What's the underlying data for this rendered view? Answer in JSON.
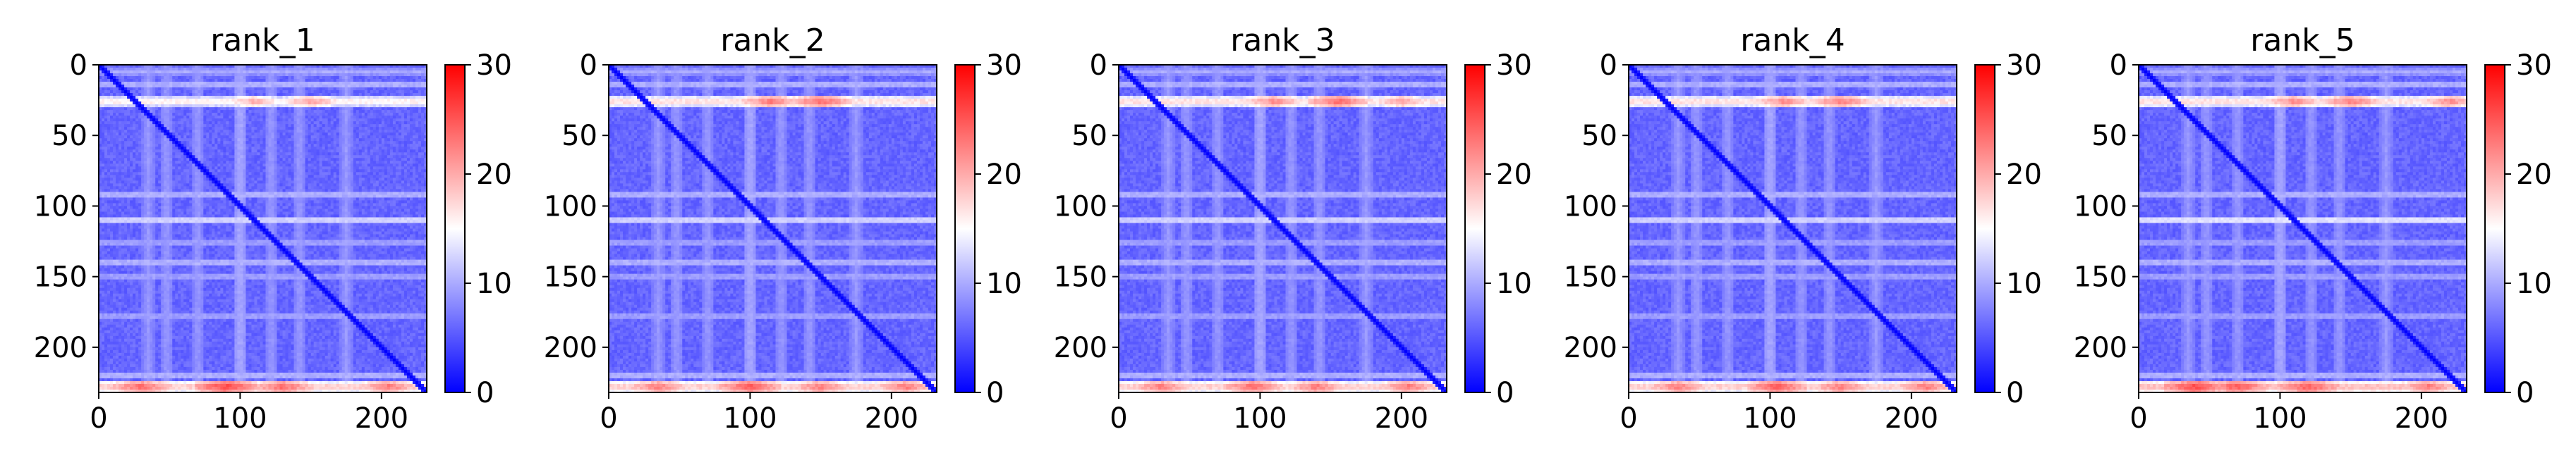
{
  "chart_data": [
    {
      "type": "heatmap",
      "title": "rank_1",
      "xlabel": "",
      "ylabel": "",
      "xlim": [
        0,
        232
      ],
      "ylim": [
        232,
        0
      ],
      "x_ticks": [
        0,
        100,
        200
      ],
      "y_ticks": [
        0,
        50,
        100,
        150,
        200
      ],
      "matrix_size": 232,
      "colorbar": {
        "min": 0,
        "max": 30,
        "ticks": [
          0,
          10,
          20,
          30
        ],
        "colormap": "bwr"
      },
      "features": {
        "background_value": 6,
        "diagonal_value": 0,
        "high_rows": [
          {
            "y": 26,
            "value": 17,
            "peaks": [
              {
                "x": 110,
                "value": 21
              },
              {
                "x": 150,
                "value": 22
              }
            ]
          },
          {
            "y": 228,
            "value": 19,
            "peaks": [
              {
                "x": 30,
                "value": 25
              },
              {
                "x": 90,
                "value": 27
              },
              {
                "x": 130,
                "value": 25
              },
              {
                "x": 205,
                "value": 24
              }
            ]
          }
        ],
        "light_rows": [
          {
            "y": 5,
            "value": 10
          },
          {
            "y": 14,
            "value": 11
          },
          {
            "y": 92,
            "value": 11
          },
          {
            "y": 110,
            "value": 13
          },
          {
            "y": 126,
            "value": 10
          },
          {
            "y": 140,
            "value": 11
          },
          {
            "y": 150,
            "value": 10
          },
          {
            "y": 178,
            "value": 10
          },
          {
            "y": 220,
            "value": 11
          }
        ],
        "light_cols": [
          {
            "x": 35,
            "value": 9
          },
          {
            "x": 48,
            "value": 9
          },
          {
            "x": 70,
            "value": 9
          },
          {
            "x": 100,
            "value": 10
          },
          {
            "x": 122,
            "value": 9
          },
          {
            "x": 142,
            "value": 9
          },
          {
            "x": 175,
            "value": 9
          }
        ]
      }
    },
    {
      "type": "heatmap",
      "title": "rank_2",
      "xlabel": "",
      "ylabel": "",
      "xlim": [
        0,
        232
      ],
      "ylim": [
        232,
        0
      ],
      "x_ticks": [
        0,
        100,
        200
      ],
      "y_ticks": [
        0,
        50,
        100,
        150,
        200
      ],
      "matrix_size": 232,
      "colorbar": {
        "min": 0,
        "max": 30,
        "ticks": [
          0,
          10,
          20,
          30
        ],
        "colormap": "bwr"
      },
      "features": {
        "background_value": 6,
        "diagonal_value": 0,
        "high_rows": [
          {
            "y": 26,
            "value": 18,
            "peaks": [
              {
                "x": 115,
                "value": 24
              },
              {
                "x": 150,
                "value": 25
              }
            ]
          },
          {
            "y": 228,
            "value": 19,
            "peaks": [
              {
                "x": 35,
                "value": 24
              },
              {
                "x": 100,
                "value": 26
              },
              {
                "x": 150,
                "value": 24
              },
              {
                "x": 210,
                "value": 24
              }
            ]
          }
        ],
        "light_rows": [
          {
            "y": 5,
            "value": 10
          },
          {
            "y": 14,
            "value": 11
          },
          {
            "y": 92,
            "value": 11
          },
          {
            "y": 110,
            "value": 13
          },
          {
            "y": 126,
            "value": 10
          },
          {
            "y": 140,
            "value": 11
          },
          {
            "y": 150,
            "value": 10
          },
          {
            "y": 178,
            "value": 10
          },
          {
            "y": 220,
            "value": 11
          }
        ],
        "light_cols": [
          {
            "x": 35,
            "value": 9
          },
          {
            "x": 48,
            "value": 9
          },
          {
            "x": 70,
            "value": 9
          },
          {
            "x": 100,
            "value": 10
          },
          {
            "x": 122,
            "value": 9
          },
          {
            "x": 142,
            "value": 9
          },
          {
            "x": 175,
            "value": 9
          }
        ]
      }
    },
    {
      "type": "heatmap",
      "title": "rank_3",
      "xlabel": "",
      "ylabel": "",
      "xlim": [
        0,
        232
      ],
      "ylim": [
        232,
        0
      ],
      "x_ticks": [
        0,
        100,
        200
      ],
      "y_ticks": [
        0,
        50,
        100,
        150,
        200
      ],
      "matrix_size": 232,
      "colorbar": {
        "min": 0,
        "max": 30,
        "ticks": [
          0,
          10,
          20,
          30
        ],
        "colormap": "bwr"
      },
      "features": {
        "background_value": 6,
        "diagonal_value": 0,
        "high_rows": [
          {
            "y": 26,
            "value": 18,
            "peaks": [
              {
                "x": 110,
                "value": 23
              },
              {
                "x": 155,
                "value": 25
              },
              {
                "x": 200,
                "value": 22
              }
            ]
          },
          {
            "y": 228,
            "value": 19,
            "peaks": [
              {
                "x": 30,
                "value": 24
              },
              {
                "x": 95,
                "value": 25
              },
              {
                "x": 140,
                "value": 24
              },
              {
                "x": 205,
                "value": 24
              }
            ]
          }
        ],
        "light_rows": [
          {
            "y": 5,
            "value": 10
          },
          {
            "y": 14,
            "value": 11
          },
          {
            "y": 92,
            "value": 11
          },
          {
            "y": 110,
            "value": 13
          },
          {
            "y": 126,
            "value": 10
          },
          {
            "y": 140,
            "value": 11
          },
          {
            "y": 150,
            "value": 10
          },
          {
            "y": 178,
            "value": 10
          },
          {
            "y": 220,
            "value": 11
          }
        ],
        "light_cols": [
          {
            "x": 35,
            "value": 9
          },
          {
            "x": 48,
            "value": 9
          },
          {
            "x": 70,
            "value": 9
          },
          {
            "x": 100,
            "value": 10
          },
          {
            "x": 122,
            "value": 9
          },
          {
            "x": 142,
            "value": 9
          },
          {
            "x": 175,
            "value": 9
          }
        ]
      }
    },
    {
      "type": "heatmap",
      "title": "rank_4",
      "xlabel": "",
      "ylabel": "",
      "xlim": [
        0,
        232
      ],
      "ylim": [
        232,
        0
      ],
      "x_ticks": [
        0,
        100,
        200
      ],
      "y_ticks": [
        0,
        50,
        100,
        150,
        200
      ],
      "matrix_size": 232,
      "colorbar": {
        "min": 0,
        "max": 30,
        "ticks": [
          0,
          10,
          20,
          30
        ],
        "colormap": "bwr"
      },
      "features": {
        "background_value": 6,
        "diagonal_value": 0,
        "high_rows": [
          {
            "y": 26,
            "value": 18,
            "peaks": [
              {
                "x": 110,
                "value": 23
              },
              {
                "x": 150,
                "value": 24
              }
            ]
          },
          {
            "y": 228,
            "value": 19,
            "peaks": [
              {
                "x": 35,
                "value": 24
              },
              {
                "x": 105,
                "value": 26
              },
              {
                "x": 150,
                "value": 24
              },
              {
                "x": 210,
                "value": 24
              }
            ]
          }
        ],
        "light_rows": [
          {
            "y": 5,
            "value": 10
          },
          {
            "y": 14,
            "value": 11
          },
          {
            "y": 92,
            "value": 11
          },
          {
            "y": 110,
            "value": 13
          },
          {
            "y": 126,
            "value": 10
          },
          {
            "y": 140,
            "value": 11
          },
          {
            "y": 150,
            "value": 10
          },
          {
            "y": 178,
            "value": 10
          },
          {
            "y": 220,
            "value": 11
          }
        ],
        "light_cols": [
          {
            "x": 35,
            "value": 9
          },
          {
            "x": 48,
            "value": 9
          },
          {
            "x": 70,
            "value": 9
          },
          {
            "x": 100,
            "value": 10
          },
          {
            "x": 122,
            "value": 9
          },
          {
            "x": 142,
            "value": 9
          },
          {
            "x": 175,
            "value": 9
          }
        ]
      }
    },
    {
      "type": "heatmap",
      "title": "rank_5",
      "xlabel": "",
      "ylabel": "",
      "xlim": [
        0,
        232
      ],
      "ylim": [
        232,
        0
      ],
      "x_ticks": [
        0,
        100,
        200
      ],
      "y_ticks": [
        0,
        50,
        100,
        150,
        200
      ],
      "matrix_size": 232,
      "colorbar": {
        "min": 0,
        "max": 30,
        "ticks": [
          0,
          10,
          20,
          30
        ],
        "colormap": "bwr"
      },
      "features": {
        "background_value": 6,
        "diagonal_value": 0,
        "high_rows": [
          {
            "y": 26,
            "value": 18,
            "peaks": [
              {
                "x": 110,
                "value": 23
              },
              {
                "x": 150,
                "value": 24
              },
              {
                "x": 220,
                "value": 23
              }
            ]
          },
          {
            "y": 228,
            "value": 20,
            "peaks": [
              {
                "x": 40,
                "value": 27
              },
              {
                "x": 70,
                "value": 26
              },
              {
                "x": 120,
                "value": 26
              },
              {
                "x": 205,
                "value": 24
              }
            ]
          }
        ],
        "light_rows": [
          {
            "y": 5,
            "value": 10
          },
          {
            "y": 14,
            "value": 11
          },
          {
            "y": 92,
            "value": 11
          },
          {
            "y": 110,
            "value": 14
          },
          {
            "y": 126,
            "value": 10
          },
          {
            "y": 140,
            "value": 11
          },
          {
            "y": 150,
            "value": 10
          },
          {
            "y": 178,
            "value": 10
          },
          {
            "y": 220,
            "value": 11
          }
        ],
        "light_cols": [
          {
            "x": 35,
            "value": 9
          },
          {
            "x": 48,
            "value": 9
          },
          {
            "x": 70,
            "value": 9
          },
          {
            "x": 100,
            "value": 10
          },
          {
            "x": 122,
            "value": 9
          },
          {
            "x": 142,
            "value": 9
          },
          {
            "x": 175,
            "value": 9
          }
        ]
      }
    }
  ]
}
